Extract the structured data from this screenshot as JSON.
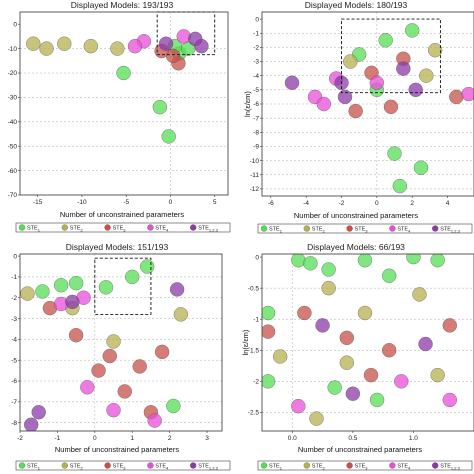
{
  "chart_data": [
    {
      "type": "scatter",
      "title": "Displayed Models: 193/193",
      "xlabel": "Number of unconstrained parameters",
      "ylabel": "",
      "xlim": [
        -17,
        6.5
      ],
      "ylim": [
        -70,
        5
      ],
      "xticks": [
        "-15",
        "-10",
        "-5",
        "0",
        "5"
      ],
      "xtick_values": [
        -15,
        -10,
        -5,
        0,
        5
      ],
      "yticks": [
        "0",
        "-10",
        "-20",
        "-30",
        "-40",
        "-50",
        "-60",
        "-70"
      ],
      "ytick_values": [
        0,
        -10,
        -20,
        -30,
        -40,
        -50,
        -60,
        -70
      ],
      "dashed_box": [
        -1.5,
        5,
        -12.5,
        5
      ],
      "series": [
        {
          "name": "STE1",
          "points": [
            [
              -5.3,
              -20
            ],
            [
              -1.2,
              -34
            ],
            [
              -0.2,
              -46
            ],
            [
              1,
              -12
            ],
            [
              2,
              -10
            ],
            [
              0.5,
              -9
            ]
          ]
        },
        {
          "name": "STE2",
          "points": [
            [
              -6,
              -10
            ],
            [
              -9,
              -9
            ],
            [
              -12,
              -8
            ],
            [
              -15.5,
              -8
            ],
            [
              -14,
              -10
            ]
          ]
        },
        {
          "name": "STE3",
          "points": [
            [
              0.9,
              -16
            ],
            [
              0.3,
              -13
            ],
            [
              -1,
              -11
            ]
          ]
        },
        {
          "name": "STE4",
          "points": [
            [
              -3,
              -7
            ],
            [
              -4,
              -9
            ],
            [
              1.5,
              -5
            ]
          ]
        },
        {
          "name": "STE1,2,3",
          "points": [
            [
              3.5,
              -9
            ],
            [
              2.8,
              -6
            ],
            [
              -0.5,
              -8
            ]
          ]
        }
      ]
    },
    {
      "type": "scatter",
      "title": "Displayed Models: 180/193",
      "xlabel": "Number of unconstrained parameters",
      "ylabel": "ln(ε/εm)",
      "xlim": [
        -6.5,
        5.5
      ],
      "ylim": [
        -12.5,
        0.5
      ],
      "xticks": [
        "-6",
        "-4",
        "-2",
        "0",
        "2",
        "4"
      ],
      "xtick_values": [
        -6,
        -4,
        -2,
        0,
        2,
        4
      ],
      "yticks": [
        "0",
        "-1",
        "-2",
        "-3",
        "-4",
        "-5",
        "-6",
        "-7",
        "-8",
        "-9",
        "-10",
        "-11",
        "-12"
      ],
      "ytick_values": [
        0,
        -1,
        -2,
        -3,
        -4,
        -5,
        -6,
        -7,
        -8,
        -9,
        -10,
        -11,
        -12
      ],
      "dashed_box": [
        -2,
        3.6,
        -5.2,
        0
      ],
      "series": [
        {
          "name": "STE1",
          "points": [
            [
              1,
              -9.5
            ],
            [
              2.5,
              -10.5
            ],
            [
              1.3,
              -11.8
            ],
            [
              0,
              -5
            ],
            [
              -1,
              -2.5
            ],
            [
              0.5,
              -1.5
            ],
            [
              2,
              -0.8
            ]
          ]
        },
        {
          "name": "STE2",
          "points": [
            [
              -1.5,
              -3
            ],
            [
              2.8,
              -4
            ],
            [
              3.3,
              -2.2
            ]
          ]
        },
        {
          "name": "STE3",
          "points": [
            [
              -1.2,
              -6.5
            ],
            [
              0.8,
              -6.2
            ],
            [
              4.5,
              -5.5
            ],
            [
              -0.3,
              -3.8
            ],
            [
              1.5,
              -2.8
            ]
          ]
        },
        {
          "name": "STE4",
          "points": [
            [
              -3.5,
              -5.5
            ],
            [
              -3,
              -6
            ],
            [
              -2.3,
              -4.2
            ],
            [
              0,
              -4.5
            ],
            [
              5.2,
              -5.3
            ]
          ]
        },
        {
          "name": "STE1,2,3",
          "points": [
            [
              -4.8,
              -4.5
            ],
            [
              -1.8,
              -5.5
            ],
            [
              2.2,
              -5
            ],
            [
              -2,
              -4.5
            ],
            [
              1.5,
              -3.5
            ]
          ]
        }
      ]
    },
    {
      "type": "scatter",
      "title": "Displayed Models: 151/193",
      "xlabel": "Number of unconstrained parameters",
      "ylabel": "",
      "xlim": [
        -2,
        3.4
      ],
      "ylim": [
        -8.4,
        0.1
      ],
      "xticks": [
        "-2",
        "-1",
        "0",
        "1",
        "2",
        "3"
      ],
      "xtick_values": [
        -2,
        -1,
        0,
        1,
        2,
        3
      ],
      "yticks": [
        "0",
        "-1",
        "-2",
        "-3",
        "-4",
        "-5",
        "-6",
        "-7",
        "-8"
      ],
      "ytick_values": [
        0,
        -1,
        -2,
        -3,
        -4,
        -5,
        -6,
        -7,
        -8
      ],
      "dashed_box": [
        0,
        1.5,
        -2.8,
        -0.1
      ],
      "series": [
        {
          "name": "STE1",
          "points": [
            [
              -1.4,
              -1.7
            ],
            [
              -0.9,
              -1.4
            ],
            [
              -0.5,
              -1.3
            ],
            [
              2.1,
              -7.2
            ],
            [
              0.3,
              -1.5
            ],
            [
              1,
              -1
            ],
            [
              1.4,
              -0.5
            ]
          ]
        },
        {
          "name": "STE2",
          "points": [
            [
              -1.8,
              -1.8
            ],
            [
              -0.6,
              -2.5
            ],
            [
              0.5,
              -4.1
            ],
            [
              2.3,
              -2.8
            ]
          ]
        },
        {
          "name": "STE3",
          "points": [
            [
              -1.2,
              -2.5
            ],
            [
              -0.5,
              -3.8
            ],
            [
              0.1,
              -5.5
            ],
            [
              0.8,
              -6.5
            ],
            [
              1.5,
              -7.5
            ],
            [
              0.4,
              -4.8
            ],
            [
              1.2,
              -5.3
            ],
            [
              1.8,
              -4.6
            ]
          ]
        },
        {
          "name": "STE4",
          "points": [
            [
              -0.9,
              -2.3
            ],
            [
              -0.2,
              -6.3
            ],
            [
              0.5,
              -7.4
            ],
            [
              1.6,
              -7.9
            ],
            [
              -0.3,
              -2
            ]
          ]
        },
        {
          "name": "STE1,2,3",
          "points": [
            [
              -1.5,
              -7.5
            ],
            [
              -1.7,
              -8.1
            ],
            [
              -0.6,
              -2.2
            ],
            [
              2.2,
              -1.6
            ]
          ]
        }
      ]
    },
    {
      "type": "scatter",
      "title": "Displayed Models: 66/193",
      "xlabel": "Number of unconstrained parameters",
      "ylabel": "ln(ε/εm)",
      "xlim": [
        -0.25,
        1.5
      ],
      "ylim": [
        -2.8,
        0.05
      ],
      "xticks": [
        "0.0",
        "0.5",
        "1.0"
      ],
      "xtick_values": [
        0,
        0.5,
        1
      ],
      "yticks": [
        "0",
        "-0.5",
        "-1",
        "-1.5",
        "-2",
        "-2.5"
      ],
      "ytick_values": [
        0,
        -0.5,
        -1,
        -1.5,
        -2,
        -2.5
      ],
      "series": [
        {
          "name": "STE1",
          "points": [
            [
              0.05,
              -0.05
            ],
            [
              0.15,
              -0.1
            ],
            [
              0.3,
              -0.2
            ],
            [
              0.6,
              -0.05
            ],
            [
              0.8,
              -0.3
            ],
            [
              1.0,
              0
            ],
            [
              1.2,
              -0.05
            ],
            [
              -0.2,
              -0.9
            ],
            [
              -0.2,
              -2.0
            ],
            [
              0.35,
              -2.1
            ],
            [
              0.7,
              -2.3
            ]
          ]
        },
        {
          "name": "STE2",
          "points": [
            [
              0.3,
              -0.5
            ],
            [
              0.6,
              -0.9
            ],
            [
              1.05,
              -0.6
            ],
            [
              -0.1,
              -1.6
            ],
            [
              0.45,
              -1.7
            ],
            [
              1.2,
              -1.9
            ],
            [
              0.2,
              -2.6
            ]
          ]
        },
        {
          "name": "STE3",
          "points": [
            [
              -0.2,
              -1.2
            ],
            [
              0.1,
              -0.9
            ],
            [
              0.45,
              -1.3
            ],
            [
              0.8,
              -1.5
            ],
            [
              1.3,
              -1.1
            ],
            [
              0.65,
              -1.9
            ]
          ]
        },
        {
          "name": "STE4",
          "points": [
            [
              0.05,
              -2.4
            ],
            [
              0.9,
              -2.0
            ],
            [
              1.3,
              -2.3
            ]
          ]
        },
        {
          "name": "STE1,2,3",
          "points": [
            [
              0.25,
              -1.1
            ],
            [
              1.1,
              -1.4
            ],
            [
              0.5,
              -2.2
            ]
          ]
        }
      ]
    }
  ],
  "legend": {
    "entries": [
      {
        "label": "STE",
        "sub": "1",
        "color": "#55dd55"
      },
      {
        "label": "STE",
        "sub": "2",
        "color": "#b5b050"
      },
      {
        "label": "STE",
        "sub": "3",
        "color": "#c8504a"
      },
      {
        "label": "STE",
        "sub": "4",
        "color": "#e84fd8"
      },
      {
        "label": "STE",
        "sub": "1,2,3",
        "color": "#8b3aa8"
      }
    ]
  }
}
